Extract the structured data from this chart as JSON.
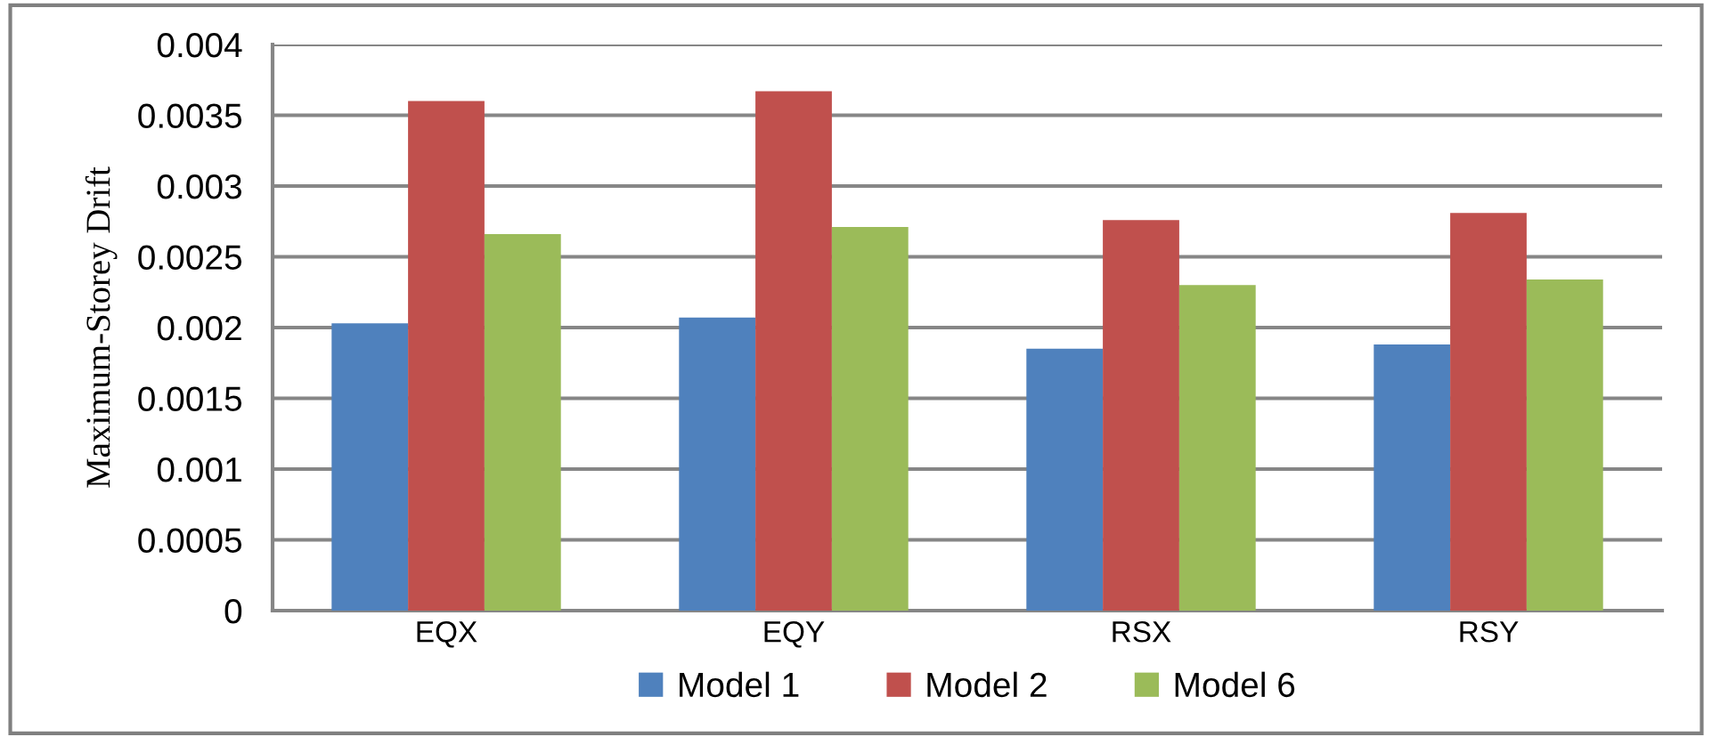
{
  "chart_data": {
    "type": "bar",
    "ylabel": "Maximum-Storey Drift",
    "categories": [
      "EQX",
      "EQY",
      "RSX",
      "RSY"
    ],
    "series": [
      {
        "name": "Model 1",
        "color": "#4f81bd",
        "values": [
          0.00203,
          0.00207,
          0.00185,
          0.00188
        ]
      },
      {
        "name": "Model 2",
        "color": "#c0504d",
        "values": [
          0.0036,
          0.00367,
          0.00276,
          0.00281
        ]
      },
      {
        "name": "Model 6",
        "color": "#9bbb59",
        "values": [
          0.00266,
          0.00271,
          0.0023,
          0.00234
        ]
      }
    ],
    "ylim": [
      0,
      0.004
    ],
    "yticks": [
      0,
      0.0005,
      0.001,
      0.0015,
      0.002,
      0.0025,
      0.003,
      0.0035,
      0.004
    ],
    "grid": "y",
    "legend": "bottom"
  }
}
